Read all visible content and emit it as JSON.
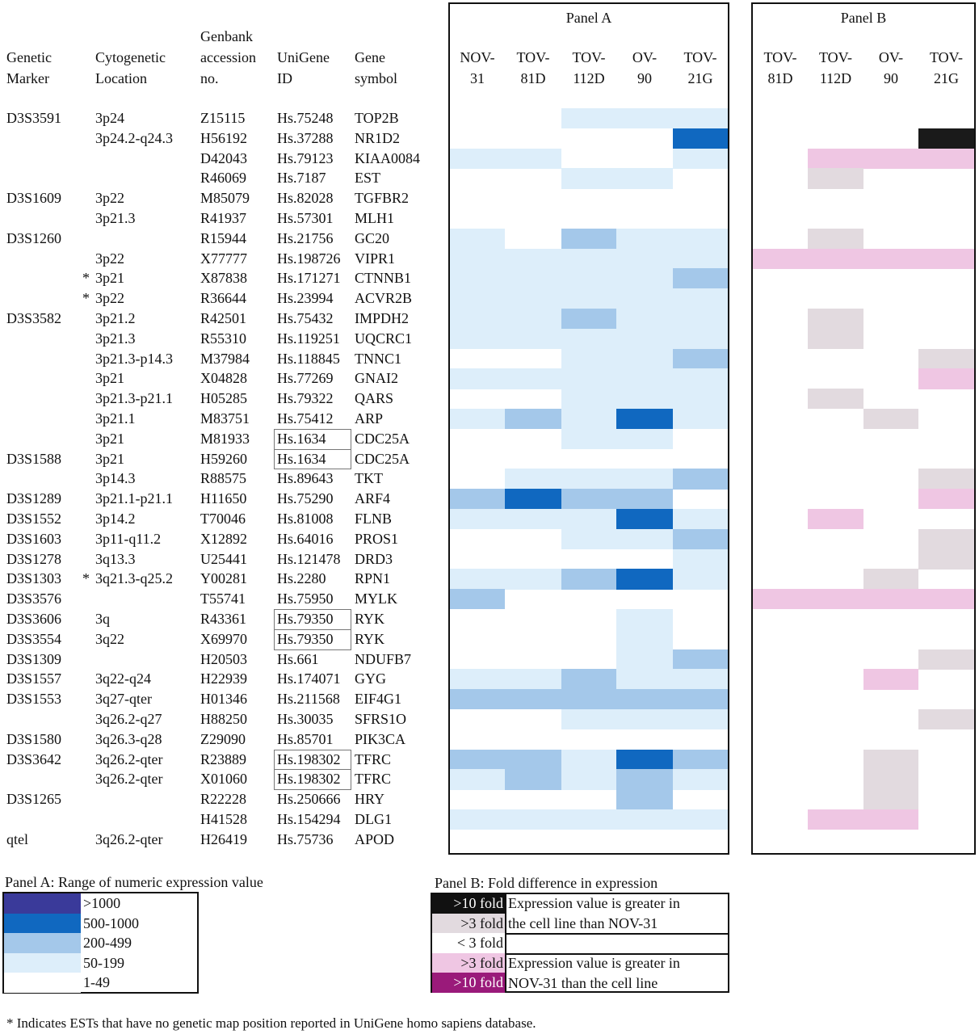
{
  "headers": {
    "marker": "Genetic\nMarker",
    "location": "Cytogenetic\nLocation",
    "genbank": "Genbank\naccession\nno.",
    "unigene": "UniGene\nID",
    "symbol": "Gene\nsymbol"
  },
  "panel_a": {
    "title": "Panel A",
    "columns": [
      "NOV-\n31",
      "TOV-\n81D",
      "TOV-\n112D",
      "OV-\n90",
      "TOV-\n21G"
    ]
  },
  "panel_b": {
    "title": "Panel B",
    "columns": [
      "TOV-\n81D",
      "TOV-\n112D",
      "OV-\n90",
      "TOV-\n21G"
    ]
  },
  "rows": [
    {
      "marker": "D3S3591",
      "star": "",
      "loc": "3p24",
      "acc": "Z15115",
      "uni": "Hs.75248",
      "sym": "TOP2B",
      "boxed": false
    },
    {
      "marker": "",
      "star": "",
      "loc": "3p24.2-q24.3",
      "acc": "H56192",
      "uni": "Hs.37288",
      "sym": "NR1D2",
      "boxed": false
    },
    {
      "marker": "",
      "star": "",
      "loc": "",
      "acc": "D42043",
      "uni": "Hs.79123",
      "sym": "KIAA0084",
      "boxed": false
    },
    {
      "marker": "",
      "star": "",
      "loc": "",
      "acc": "R46069",
      "uni": "Hs.7187",
      "sym": "EST",
      "boxed": false
    },
    {
      "marker": "D3S1609",
      "star": "",
      "loc": "3p22",
      "acc": "M85079",
      "uni": "Hs.82028",
      "sym": "TGFBR2",
      "boxed": false
    },
    {
      "marker": "",
      "star": "",
      "loc": "3p21.3",
      "acc": "R41937",
      "uni": "Hs.57301",
      "sym": "MLH1",
      "boxed": false
    },
    {
      "marker": "D3S1260",
      "star": "",
      "loc": "",
      "acc": "R15944",
      "uni": "Hs.21756",
      "sym": "GC20",
      "boxed": false
    },
    {
      "marker": "",
      "star": "",
      "loc": "3p22",
      "acc": "X77777",
      "uni": "Hs.198726",
      "sym": "VIPR1",
      "boxed": false
    },
    {
      "marker": "",
      "star": "*",
      "loc": "3p21",
      "acc": "X87838",
      "uni": "Hs.171271",
      "sym": "CTNNB1",
      "boxed": false
    },
    {
      "marker": "",
      "star": "*",
      "loc": "3p22",
      "acc": "R36644",
      "uni": "Hs.23994",
      "sym": "ACVR2B",
      "boxed": false
    },
    {
      "marker": "D3S3582",
      "star": "",
      "loc": "3p21.2",
      "acc": "R42501",
      "uni": "Hs.75432",
      "sym": "IMPDH2",
      "boxed": false
    },
    {
      "marker": "",
      "star": "",
      "loc": "3p21.3",
      "acc": "R55310",
      "uni": "Hs.119251",
      "sym": "UQCRC1",
      "boxed": false
    },
    {
      "marker": "",
      "star": "",
      "loc": "3p21.3-p14.3",
      "acc": "M37984",
      "uni": "Hs.118845",
      "sym": "TNNC1",
      "boxed": false
    },
    {
      "marker": "",
      "star": "",
      "loc": "3p21",
      "acc": "X04828",
      "uni": "Hs.77269",
      "sym": "GNAI2",
      "boxed": false
    },
    {
      "marker": "",
      "star": "",
      "loc": "3p21.3-p21.1",
      "acc": "H05285",
      "uni": "Hs.79322",
      "sym": "QARS",
      "boxed": false
    },
    {
      "marker": "",
      "star": "",
      "loc": "3p21.1",
      "acc": "M83751",
      "uni": "Hs.75412",
      "sym": "ARP",
      "boxed": false
    },
    {
      "marker": "",
      "star": "",
      "loc": "3p21",
      "acc": "M81933",
      "uni": "Hs.1634",
      "sym": "CDC25A",
      "boxed": true
    },
    {
      "marker": "D3S1588",
      "star": "",
      "loc": "3p21",
      "acc": "H59260",
      "uni": "Hs.1634",
      "sym": "CDC25A",
      "boxed": true
    },
    {
      "marker": "",
      "star": "",
      "loc": "3p14.3",
      "acc": "R88575",
      "uni": "Hs.89643",
      "sym": "TKT",
      "boxed": false
    },
    {
      "marker": "D3S1289",
      "star": "",
      "loc": "3p21.1-p21.1",
      "acc": "H11650",
      "uni": "Hs.75290",
      "sym": "ARF4",
      "boxed": false
    },
    {
      "marker": "D3S1552",
      "star": "",
      "loc": "3p14.2",
      "acc": "T70046",
      "uni": "Hs.81008",
      "sym": "FLNB",
      "boxed": false
    },
    {
      "marker": "D3S1603",
      "star": "",
      "loc": "3p11-q11.2",
      "acc": "X12892",
      "uni": "Hs.64016",
      "sym": "PROS1",
      "boxed": false
    },
    {
      "marker": "D3S1278",
      "star": "",
      "loc": "3q13.3",
      "acc": "U25441",
      "uni": "Hs.121478",
      "sym": "DRD3",
      "boxed": false
    },
    {
      "marker": "D3S1303",
      "star": "*",
      "loc": "3q21.3-q25.2",
      "acc": "Y00281",
      "uni": "Hs.2280",
      "sym": "RPN1",
      "boxed": false
    },
    {
      "marker": "D3S3576",
      "star": "",
      "loc": "",
      "acc": "T55741",
      "uni": "Hs.75950",
      "sym": "MYLK",
      "boxed": false
    },
    {
      "marker": "D3S3606",
      "star": "",
      "loc": "3q",
      "acc": "R43361",
      "uni": "Hs.79350",
      "sym": "RYK",
      "boxed": true
    },
    {
      "marker": "D3S3554",
      "star": "",
      "loc": "3q22",
      "acc": "X69970",
      "uni": "Hs.79350",
      "sym": "RYK",
      "boxed": true
    },
    {
      "marker": "D3S1309",
      "star": "",
      "loc": "",
      "acc": "H20503",
      "uni": "Hs.661",
      "sym": "NDUFB7",
      "boxed": false
    },
    {
      "marker": "D3S1557",
      "star": "",
      "loc": "3q22-q24",
      "acc": "H22939",
      "uni": "Hs.174071",
      "sym": "GYG",
      "boxed": false
    },
    {
      "marker": "D3S1553",
      "star": "",
      "loc": "3q27-qter",
      "acc": "H01346",
      "uni": "Hs.211568",
      "sym": "EIF4G1",
      "boxed": false
    },
    {
      "marker": "",
      "star": "",
      "loc": "3q26.2-q27",
      "acc": "H88250",
      "uni": "Hs.30035",
      "sym": "SFRS1O",
      "boxed": false
    },
    {
      "marker": "D3S1580",
      "star": "",
      "loc": "3q26.3-q28",
      "acc": "Z29090",
      "uni": "Hs.85701",
      "sym": "PIK3CA",
      "boxed": false
    },
    {
      "marker": "D3S3642",
      "star": "",
      "loc": "3q26.2-qter",
      "acc": "R23889",
      "uni": "Hs.198302",
      "sym": "TFRC",
      "boxed": true
    },
    {
      "marker": "",
      "star": "",
      "loc": "3q26.2-qter",
      "acc": "X01060",
      "uni": "Hs.198302",
      "sym": "TFRC",
      "boxed": true
    },
    {
      "marker": "D3S1265",
      "star": "",
      "loc": "",
      "acc": "R22228",
      "uni": "Hs.250666",
      "sym": "HRY",
      "boxed": false
    },
    {
      "marker": "",
      "star": "",
      "loc": "",
      "acc": "H41528",
      "uni": "Hs.154294",
      "sym": "DLG1",
      "boxed": false
    },
    {
      "marker": "qtel",
      "star": "",
      "loc": "3q26.2-qter",
      "acc": "H26419",
      "uni": "Hs.75736",
      "sym": "APOD",
      "boxed": false
    }
  ],
  "chart_data": {
    "type": "heatmap",
    "panel_a_levels_note": "level index: 0='1-49', 1='50-199', 2='200-499', 3='500-1000', 4='>1000'",
    "panel_a": [
      [
        0,
        0,
        1,
        1,
        1
      ],
      [
        0,
        0,
        0,
        0,
        3
      ],
      [
        1,
        1,
        0,
        0,
        1
      ],
      [
        0,
        0,
        1,
        1,
        0
      ],
      [
        0,
        0,
        0,
        0,
        0
      ],
      [
        0,
        0,
        0,
        0,
        0
      ],
      [
        1,
        0,
        2,
        1,
        1
      ],
      [
        1,
        1,
        1,
        1,
        1
      ],
      [
        1,
        1,
        1,
        1,
        2
      ],
      [
        1,
        1,
        1,
        1,
        1
      ],
      [
        1,
        1,
        2,
        1,
        1
      ],
      [
        1,
        1,
        1,
        1,
        1
      ],
      [
        0,
        0,
        1,
        1,
        2
      ],
      [
        1,
        1,
        1,
        1,
        1
      ],
      [
        0,
        0,
        1,
        1,
        1
      ],
      [
        1,
        2,
        1,
        3,
        1
      ],
      [
        0,
        0,
        1,
        1,
        0
      ],
      [
        0,
        0,
        0,
        0,
        0
      ],
      [
        0,
        1,
        1,
        1,
        2
      ],
      [
        2,
        3,
        2,
        2,
        0
      ],
      [
        1,
        1,
        1,
        3,
        1
      ],
      [
        0,
        0,
        1,
        1,
        2
      ],
      [
        0,
        0,
        0,
        0,
        1
      ],
      [
        1,
        1,
        2,
        3,
        1
      ],
      [
        2,
        0,
        0,
        0,
        0
      ],
      [
        0,
        0,
        0,
        1,
        0
      ],
      [
        0,
        0,
        0,
        1,
        0
      ],
      [
        0,
        0,
        0,
        1,
        2
      ],
      [
        1,
        1,
        2,
        1,
        1
      ],
      [
        2,
        2,
        2,
        2,
        2
      ],
      [
        0,
        0,
        1,
        1,
        1
      ],
      [
        0,
        0,
        0,
        0,
        0
      ],
      [
        2,
        2,
        1,
        3,
        2
      ],
      [
        1,
        2,
        1,
        2,
        1
      ],
      [
        0,
        0,
        0,
        2,
        0
      ],
      [
        1,
        1,
        1,
        1,
        1
      ],
      [
        0,
        0,
        0,
        0,
        0
      ]
    ],
    "panel_b_levels_note": "0='< 3 fold', 1='>3 fold' (greater in cell line), 2='>10 fold' (greater in cell line), -1='>3 fold' (greater in NOV-31), -2='>10 fold' (greater in NOV-31)",
    "panel_b": [
      [
        0,
        0,
        0,
        0
      ],
      [
        0,
        0,
        0,
        2
      ],
      [
        0,
        -1,
        -1,
        -1
      ],
      [
        0,
        1,
        0,
        0
      ],
      [
        0,
        0,
        0,
        0
      ],
      [
        0,
        0,
        0,
        0
      ],
      [
        0,
        1,
        0,
        0
      ],
      [
        -1,
        -1,
        -1,
        -1
      ],
      [
        0,
        0,
        0,
        0
      ],
      [
        0,
        0,
        0,
        0
      ],
      [
        0,
        1,
        0,
        0
      ],
      [
        0,
        1,
        0,
        0
      ],
      [
        0,
        0,
        0,
        1
      ],
      [
        0,
        0,
        0,
        -1
      ],
      [
        0,
        1,
        0,
        0
      ],
      [
        0,
        0,
        1,
        0
      ],
      [
        0,
        0,
        0,
        0
      ],
      [
        0,
        0,
        0,
        0
      ],
      [
        0,
        0,
        0,
        1
      ],
      [
        0,
        0,
        0,
        -1
      ],
      [
        0,
        -1,
        0,
        0
      ],
      [
        0,
        0,
        0,
        1
      ],
      [
        0,
        0,
        0,
        1
      ],
      [
        0,
        0,
        1,
        0
      ],
      [
        -1,
        -1,
        -1,
        -1
      ],
      [
        0,
        0,
        0,
        0
      ],
      [
        0,
        0,
        0,
        0
      ],
      [
        0,
        0,
        0,
        1
      ],
      [
        0,
        0,
        -1,
        0
      ],
      [
        0,
        0,
        0,
        0
      ],
      [
        0,
        0,
        0,
        1
      ],
      [
        0,
        0,
        0,
        0
      ],
      [
        0,
        0,
        1,
        0
      ],
      [
        0,
        0,
        1,
        0
      ],
      [
        0,
        0,
        1,
        0
      ],
      [
        0,
        -1,
        -1,
        0
      ],
      [
        0,
        0,
        0,
        0
      ]
    ]
  },
  "legend_a": {
    "title": "Panel A:  Range of numeric expression value",
    "items": [
      {
        "label": ">1000",
        "color": "#3a3a9a"
      },
      {
        "label": "500-1000",
        "color": "#1068c0"
      },
      {
        "label": "200-499",
        "color": "#a4c8ea"
      },
      {
        "label": "50-199",
        "color": "#ddeefa"
      },
      {
        "label": "1-49",
        "color": "#ffffff"
      }
    ]
  },
  "legend_b": {
    "title": "Panel B:  Fold difference in expression",
    "items": [
      {
        "label": ">10 fold",
        "color": "#111111",
        "text_color": "#ffffff"
      },
      {
        "label": ">3 fold",
        "color": "#e2dadf",
        "text_color": "#111111"
      },
      {
        "label": "< 3 fold",
        "color": "#ffffff",
        "text_color": "#111111"
      },
      {
        "label": ">3 fold",
        "color": "#efc6e3",
        "text_color": "#111111"
      },
      {
        "label": ">10 fold",
        "color": "#9a1a7a",
        "text_color": "#ffffff"
      }
    ],
    "desc_cell_line": "Expression value is greater in\nthe cell line than NOV-31",
    "desc_nov": "Expression value is greater in\nNOV-31 than the cell line"
  },
  "footnote": "* Indicates ESTs that have no genetic map position reported in UniGene homo sapiens database.",
  "colors": {
    "a_levels": [
      "#ffffff",
      "#ddeefa",
      "#a4c8ea",
      "#1068c0",
      "#3a3a9a"
    ],
    "b_up3": "#e2dadf",
    "b_up10": "#1a1a1a",
    "b_down3": "#efc6e3",
    "b_down10": "#9a1a7a"
  }
}
